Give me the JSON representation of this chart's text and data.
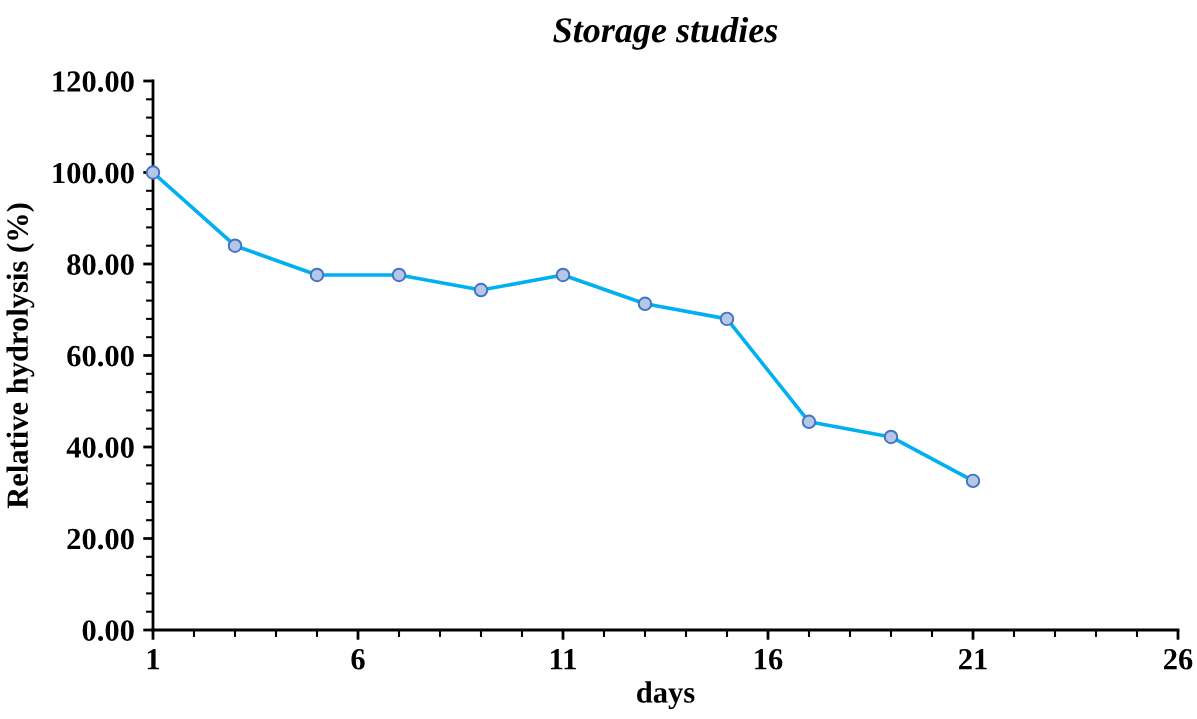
{
  "chart_data": {
    "type": "line",
    "title": "Storage studies",
    "xlabel": "days",
    "ylabel": "Relative hydrolysis (%)",
    "x": [
      1,
      3,
      5,
      7,
      9,
      11,
      13,
      15,
      17,
      19,
      21
    ],
    "series": [
      {
        "color": "#00b0f0",
        "values": [
          100.0,
          84.0,
          77.6,
          77.6,
          74.3,
          77.6,
          71.3,
          68.0,
          45.5,
          42.2,
          32.6
        ]
      }
    ],
    "marker": "circle",
    "line_style": "solid",
    "grid": false,
    "legend": false,
    "xlim": [
      1,
      26
    ],
    "xticks": [
      1,
      6,
      11,
      16,
      21,
      26
    ],
    "ylim": [
      0,
      120
    ],
    "yticks": [
      {
        "value": 0,
        "label": "0.00"
      },
      {
        "value": 20,
        "label": "20.00"
      },
      {
        "value": 40,
        "label": "40.00"
      },
      {
        "value": 60,
        "label": "60.00"
      },
      {
        "value": 80,
        "label": "80.00"
      },
      {
        "value": 100,
        "label": "100.00"
      },
      {
        "value": 120,
        "label": "120.00"
      }
    ]
  }
}
